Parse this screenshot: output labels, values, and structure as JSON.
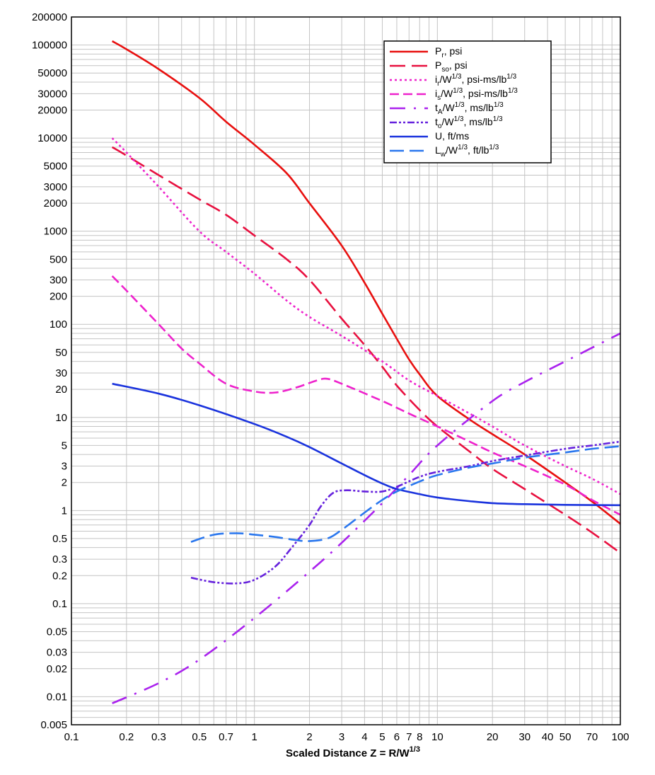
{
  "chart_data": {
    "type": "line",
    "title": "",
    "xlabel": "Scaled Distance Z = R/W",
    "xlabel_sup": "1/3",
    "ylabel": "",
    "x_scale": "log",
    "y_scale": "log",
    "xlim": [
      0.1,
      100
    ],
    "ylim": [
      0.005,
      200000
    ],
    "grid": true,
    "legend_position": "top-right",
    "x_ticks": [
      0.1,
      0.2,
      0.3,
      0.5,
      0.7,
      1,
      2,
      3,
      4,
      5,
      6,
      7,
      8,
      10,
      20,
      30,
      40,
      50,
      70,
      100
    ],
    "x_tick_labels": [
      "0.1",
      "0.2",
      "0.3",
      "0.5",
      "0.7",
      "1",
      "2",
      "3",
      "4",
      "5",
      "6",
      "7",
      "8",
      "10",
      "20",
      "30",
      "40",
      "50",
      "70",
      "100"
    ],
    "y_ticks": [
      0.005,
      0.01,
      0.02,
      0.03,
      0.05,
      0.1,
      0.2,
      0.3,
      0.5,
      1,
      2,
      3,
      5,
      10,
      20,
      30,
      50,
      100,
      200,
      300,
      500,
      1000,
      2000,
      3000,
      5000,
      10000,
      20000,
      30000,
      50000,
      100000,
      200000
    ],
    "y_tick_labels": [
      "0.005",
      "0.01",
      "0.02",
      "0.03",
      "0.05",
      "0.1",
      "0.2",
      "0.3",
      "0.5",
      "1",
      "2",
      "3",
      "5",
      "10",
      "20",
      "30",
      "50",
      "100",
      "200",
      "300",
      "500",
      "1000",
      "2000",
      "3000",
      "5000",
      "10000",
      "20000",
      "30000",
      "50000",
      "100000",
      "200000"
    ],
    "series": [
      {
        "key": "pr",
        "name": "Pr, psi",
        "label_parts": [
          [
            "P",
            ""
          ],
          [
            "r",
            "sub"
          ],
          [
            ", psi",
            ""
          ]
        ],
        "color": "#e8100f",
        "dash": "",
        "x": [
          0.167,
          0.2,
          0.3,
          0.5,
          0.7,
          1,
          1.5,
          2,
          3,
          4,
          5,
          6,
          7,
          8,
          10,
          15,
          20,
          30,
          50,
          70,
          100
        ],
        "y": [
          110000,
          90000,
          55000,
          27000,
          15000,
          8500,
          4200,
          2000,
          700,
          280,
          130,
          70,
          42,
          29,
          17,
          9.5,
          6.6,
          4.0,
          2.0,
          1.25,
          0.72
        ]
      },
      {
        "key": "pso",
        "name": "Pso, psi",
        "label_parts": [
          [
            "P",
            ""
          ],
          [
            "so",
            "sub"
          ],
          [
            ", psi",
            ""
          ]
        ],
        "color": "#e8103f",
        "dash": "22,9",
        "x": [
          0.167,
          0.2,
          0.3,
          0.5,
          0.7,
          1,
          1.5,
          2,
          3,
          4,
          5,
          6,
          8,
          10,
          15,
          20,
          30,
          50,
          70,
          100
        ],
        "y": [
          8000,
          6500,
          4000,
          2200,
          1500,
          900,
          500,
          300,
          115,
          60,
          35,
          22,
          12,
          8,
          4.3,
          2.8,
          1.7,
          0.9,
          0.58,
          0.35
        ]
      },
      {
        "key": "ir",
        "name": "ir/W1/3, psi-ms/lb1/3",
        "label_parts": [
          [
            "i",
            ""
          ],
          [
            "r",
            "sub"
          ],
          [
            "/W",
            ""
          ],
          [
            "1/3",
            "sup"
          ],
          [
            ", psi-ms/lb",
            ""
          ],
          [
            "1/3",
            "sup"
          ]
        ],
        "color": "#ee22cc",
        "dash": "3,4",
        "x": [
          0.167,
          0.2,
          0.3,
          0.5,
          0.7,
          1,
          1.5,
          2,
          3,
          5,
          7,
          10,
          15,
          20,
          30,
          50,
          70,
          100
        ],
        "y": [
          10000,
          7000,
          3000,
          1000,
          600,
          350,
          180,
          120,
          75,
          40,
          25,
          17,
          11,
          8,
          5,
          3,
          2.2,
          1.5
        ]
      },
      {
        "key": "is",
        "name": "is/W1/3, psi-ms/lb1/3",
        "label_parts": [
          [
            "i",
            ""
          ],
          [
            "s",
            "sub"
          ],
          [
            "/W",
            ""
          ],
          [
            "1/3",
            "sup"
          ],
          [
            ", psi-ms/lb",
            ""
          ],
          [
            "1/3",
            "sup"
          ]
        ],
        "color": "#ee22cc",
        "dash": "13,6",
        "x": [
          0.167,
          0.2,
          0.3,
          0.4,
          0.5,
          0.7,
          1,
          1.3,
          1.7,
          2.2,
          2.5,
          3,
          5,
          7,
          10,
          15,
          20,
          30,
          50,
          70,
          100
        ],
        "y": [
          330,
          230,
          100,
          55,
          38,
          23,
          19,
          18.5,
          21,
          25,
          26,
          23,
          15,
          11,
          8,
          5.5,
          4.2,
          3,
          1.9,
          1.3,
          0.9
        ]
      },
      {
        "key": "ta",
        "name": "tA/W1/3, ms/lb1/3",
        "label_parts": [
          [
            "t",
            ""
          ],
          [
            "A",
            "sub"
          ],
          [
            "/W",
            ""
          ],
          [
            "1/3",
            "sup"
          ],
          [
            ", ms/lb",
            ""
          ],
          [
            "1/3",
            "sup"
          ]
        ],
        "color": "#aa22ee",
        "dash": "22,12,3,12",
        "x": [
          0.167,
          0.3,
          0.5,
          1,
          2,
          3,
          5,
          7,
          10,
          20,
          30,
          50,
          100
        ],
        "y": [
          0.0085,
          0.014,
          0.025,
          0.07,
          0.22,
          0.45,
          1.2,
          2.4,
          5,
          15,
          24,
          40,
          80
        ]
      },
      {
        "key": "to",
        "name": "to/W1/3, ms/lb1/3",
        "label_parts": [
          [
            "t",
            ""
          ],
          [
            "o",
            "sub"
          ],
          [
            "/W",
            ""
          ],
          [
            "1/3",
            "sup"
          ],
          [
            ", ms/lb",
            ""
          ],
          [
            "1/3",
            "sup"
          ]
        ],
        "color": "#6622dd",
        "dash": "10,3,3,3,3,3",
        "x": [
          0.45,
          0.6,
          0.8,
          1,
          1.3,
          1.6,
          2,
          2.3,
          2.7,
          3.2,
          4,
          5,
          6,
          8,
          10,
          15,
          20,
          30,
          50,
          70,
          100
        ],
        "y": [
          0.19,
          0.17,
          0.165,
          0.18,
          0.25,
          0.4,
          0.7,
          1.1,
          1.55,
          1.65,
          1.6,
          1.6,
          1.8,
          2.3,
          2.6,
          3.0,
          3.4,
          3.9,
          4.6,
          5.0,
          5.5
        ]
      },
      {
        "key": "u",
        "name": "U, ft/ms",
        "label_parts": [
          [
            "U, ft/ms",
            ""
          ]
        ],
        "color": "#1a33dd",
        "dash": "",
        "x": [
          0.167,
          0.3,
          0.5,
          1,
          1.5,
          2,
          3,
          4,
          5,
          6,
          8,
          10,
          15,
          20,
          30,
          50,
          100
        ],
        "y": [
          23,
          18,
          13.5,
          8.5,
          6.2,
          4.8,
          3.2,
          2.4,
          1.95,
          1.7,
          1.5,
          1.38,
          1.26,
          1.2,
          1.17,
          1.15,
          1.14
        ]
      },
      {
        "key": "lw",
        "name": "Lw/W1/3, ft/lb1/3",
        "label_parts": [
          [
            "L",
            ""
          ],
          [
            "w",
            "sub"
          ],
          [
            "/W",
            ""
          ],
          [
            "1/3",
            "sup"
          ],
          [
            ", ft/lb",
            ""
          ],
          [
            "1/3",
            "sup"
          ]
        ],
        "color": "#2a77ee",
        "dash": "20,8",
        "x": [
          0.45,
          0.6,
          0.8,
          1,
          1.3,
          1.7,
          2,
          2.5,
          3,
          4,
          5,
          6,
          8,
          10,
          15,
          20,
          30,
          50,
          70,
          100
        ],
        "y": [
          0.46,
          0.55,
          0.57,
          0.55,
          0.52,
          0.48,
          0.47,
          0.5,
          0.62,
          0.95,
          1.3,
          1.6,
          2.05,
          2.4,
          2.9,
          3.2,
          3.7,
          4.2,
          4.6,
          4.9
        ]
      }
    ]
  }
}
